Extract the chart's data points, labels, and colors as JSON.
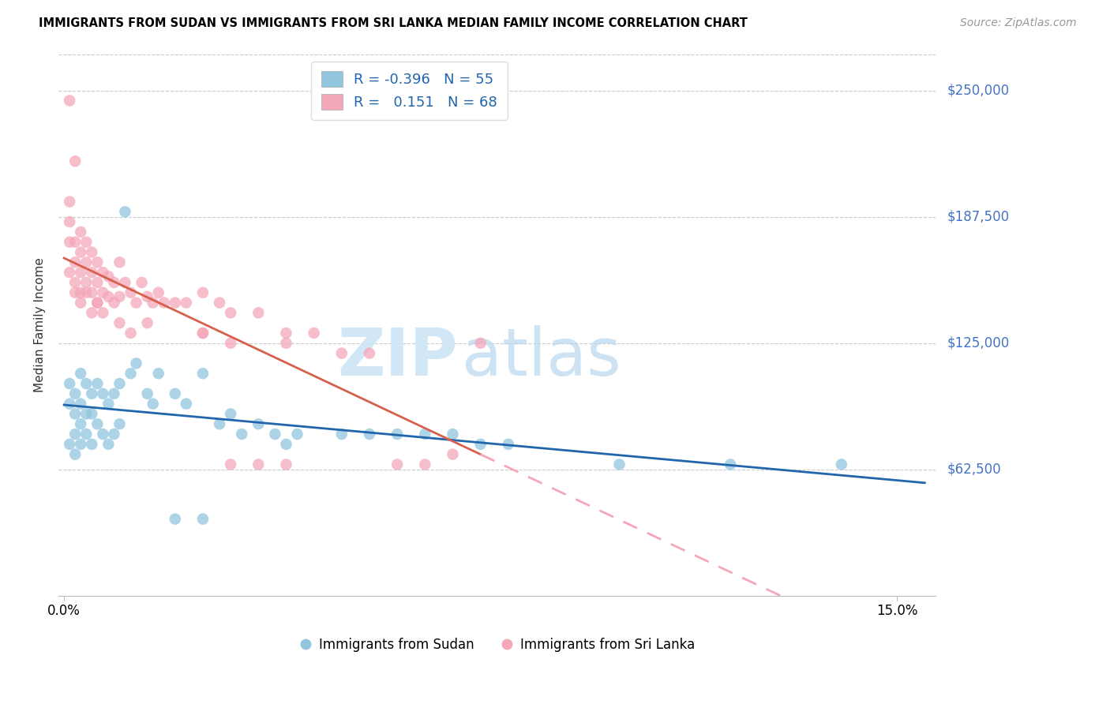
{
  "title": "IMMIGRANTS FROM SUDAN VS IMMIGRANTS FROM SRI LANKA MEDIAN FAMILY INCOME CORRELATION CHART",
  "source": "Source: ZipAtlas.com",
  "ylabel": "Median Family Income",
  "ytick_labels": [
    "$250,000",
    "$187,500",
    "$125,000",
    "$62,500"
  ],
  "ytick_values": [
    250000,
    187500,
    125000,
    62500
  ],
  "ylim": [
    0,
    268000
  ],
  "xlim": [
    -0.001,
    0.157
  ],
  "watermark_zip": "ZIP",
  "watermark_atlas": "atlas",
  "sudan_R": -0.396,
  "sudan_N": 55,
  "srilanka_R": 0.151,
  "srilanka_N": 68,
  "sudan_color": "#92c5de",
  "srilanka_color": "#f4a7b9",
  "line_sudan_color": "#2166ac",
  "line_srilanka_solid_color": "#d6604d",
  "line_srilanka_dash_color": "#f4a7b9",
  "sudan_x": [
    0.001,
    0.001,
    0.001,
    0.002,
    0.002,
    0.002,
    0.002,
    0.003,
    0.003,
    0.003,
    0.003,
    0.004,
    0.004,
    0.004,
    0.005,
    0.005,
    0.005,
    0.006,
    0.006,
    0.007,
    0.007,
    0.008,
    0.008,
    0.009,
    0.009,
    0.01,
    0.01,
    0.011,
    0.012,
    0.013,
    0.015,
    0.016,
    0.017,
    0.02,
    0.022,
    0.025,
    0.028,
    0.03,
    0.032,
    0.035,
    0.038,
    0.04,
    0.042,
    0.05,
    0.055,
    0.06,
    0.065,
    0.07,
    0.075,
    0.08,
    0.1,
    0.12,
    0.14,
    0.02,
    0.025
  ],
  "sudan_y": [
    105000,
    95000,
    75000,
    100000,
    90000,
    80000,
    70000,
    110000,
    95000,
    85000,
    75000,
    105000,
    90000,
    80000,
    100000,
    90000,
    75000,
    105000,
    85000,
    100000,
    80000,
    95000,
    75000,
    100000,
    80000,
    105000,
    85000,
    190000,
    110000,
    115000,
    100000,
    95000,
    110000,
    100000,
    95000,
    110000,
    85000,
    90000,
    80000,
    85000,
    80000,
    75000,
    80000,
    80000,
    80000,
    80000,
    80000,
    80000,
    75000,
    75000,
    65000,
    65000,
    65000,
    38000,
    38000
  ],
  "srilanka_x": [
    0.001,
    0.001,
    0.001,
    0.001,
    0.001,
    0.002,
    0.002,
    0.002,
    0.002,
    0.002,
    0.003,
    0.003,
    0.003,
    0.003,
    0.004,
    0.004,
    0.004,
    0.005,
    0.005,
    0.005,
    0.006,
    0.006,
    0.006,
    0.007,
    0.007,
    0.008,
    0.008,
    0.009,
    0.009,
    0.01,
    0.01,
    0.011,
    0.012,
    0.013,
    0.014,
    0.015,
    0.016,
    0.017,
    0.018,
    0.02,
    0.022,
    0.025,
    0.025,
    0.028,
    0.03,
    0.03,
    0.035,
    0.04,
    0.04,
    0.045,
    0.05,
    0.055,
    0.06,
    0.065,
    0.07,
    0.075,
    0.025,
    0.03,
    0.035,
    0.04,
    0.003,
    0.004,
    0.005,
    0.006,
    0.007,
    0.01,
    0.012,
    0.015
  ],
  "srilanka_y": [
    245000,
    195000,
    185000,
    175000,
    160000,
    215000,
    175000,
    165000,
    155000,
    150000,
    180000,
    170000,
    160000,
    150000,
    175000,
    165000,
    155000,
    170000,
    160000,
    150000,
    165000,
    155000,
    145000,
    160000,
    150000,
    158000,
    148000,
    155000,
    145000,
    165000,
    148000,
    155000,
    150000,
    145000,
    155000,
    148000,
    145000,
    150000,
    145000,
    145000,
    145000,
    150000,
    130000,
    145000,
    140000,
    125000,
    140000,
    130000,
    125000,
    130000,
    120000,
    120000,
    65000,
    65000,
    70000,
    125000,
    130000,
    65000,
    65000,
    65000,
    145000,
    150000,
    140000,
    145000,
    140000,
    135000,
    130000,
    135000
  ]
}
